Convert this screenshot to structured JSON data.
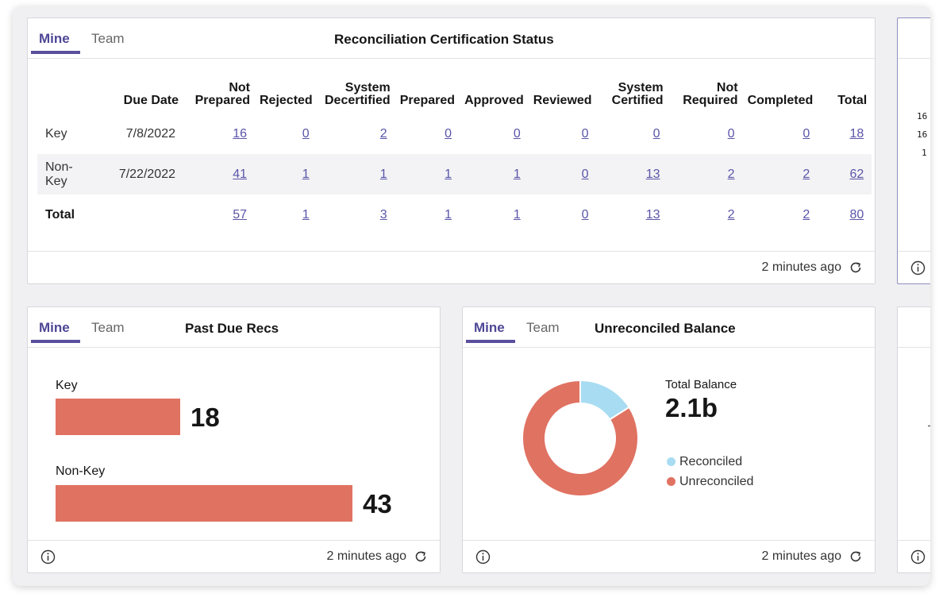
{
  "colors": {
    "accent": "#4e4796",
    "bar": "#e07262",
    "reconciled": "#a8dcf2",
    "unreconciled": "#e07262",
    "link": "#5a55a8"
  },
  "recon_card": {
    "tabs": [
      "Mine",
      "Team"
    ],
    "title": "Reconciliation Certification Status",
    "columns": [
      {
        "line1": "",
        "line2": ""
      },
      {
        "line1": "",
        "line2": "Due Date"
      },
      {
        "line1": "Not",
        "line2": "Prepared"
      },
      {
        "line1": "",
        "line2": "Rejected"
      },
      {
        "line1": "System",
        "line2": "Decertified"
      },
      {
        "line1": "",
        "line2": "Prepared"
      },
      {
        "line1": "",
        "line2": "Approved"
      },
      {
        "line1": "",
        "line2": "Reviewed"
      },
      {
        "line1": "System",
        "line2": "Certified"
      },
      {
        "line1": "Not",
        "line2": "Required"
      },
      {
        "line1": "",
        "line2": "Completed"
      },
      {
        "line1": "",
        "line2": "Total"
      }
    ],
    "rows": [
      {
        "label": "Key",
        "date": "7/8/2022",
        "values": [
          "16",
          "0",
          "2",
          "0",
          "0",
          "0",
          "0",
          "0",
          "0",
          "18"
        ]
      },
      {
        "label": "Non-Key",
        "date": "7/22/2022",
        "values": [
          "41",
          "1",
          "1",
          "1",
          "1",
          "0",
          "13",
          "2",
          "2",
          "62"
        ]
      },
      {
        "label": "Total",
        "date": "",
        "values": [
          "57",
          "1",
          "3",
          "1",
          "1",
          "0",
          "13",
          "2",
          "2",
          "80"
        ]
      }
    ],
    "updated": "2 minutes ago"
  },
  "right_partial_top": {
    "numbers": [
      "16",
      "16",
      "1"
    ]
  },
  "past_due_card": {
    "tabs": [
      "Mine",
      "Team"
    ],
    "title": "Past Due Recs",
    "bars": [
      {
        "label": "Key",
        "value": 18
      },
      {
        "label": "Non-Key",
        "value": 43
      }
    ],
    "value_labels": [
      "18",
      "43"
    ],
    "updated": "2 minutes ago"
  },
  "unreconciled_card": {
    "tabs": [
      "Mine",
      "Team"
    ],
    "title": "Unreconciled Balance",
    "total_label": "Total Balance",
    "total_value": "2.1b",
    "legend": [
      {
        "label": "Reconciled",
        "color": "#a8dcf2"
      },
      {
        "label": "Unreconciled",
        "color": "#e07262"
      }
    ],
    "updated": "2 minutes ago"
  },
  "chart_data": {
    "type": "pie",
    "labels": [
      "Reconciled",
      "Unreconciled"
    ],
    "values": [
      0.16,
      0.84
    ],
    "colors": [
      "#a8dcf2",
      "#e07262"
    ],
    "donut": true,
    "legend": "right"
  },
  "icons": {
    "info": "info-circle-icon",
    "refresh": "refresh-icon"
  }
}
